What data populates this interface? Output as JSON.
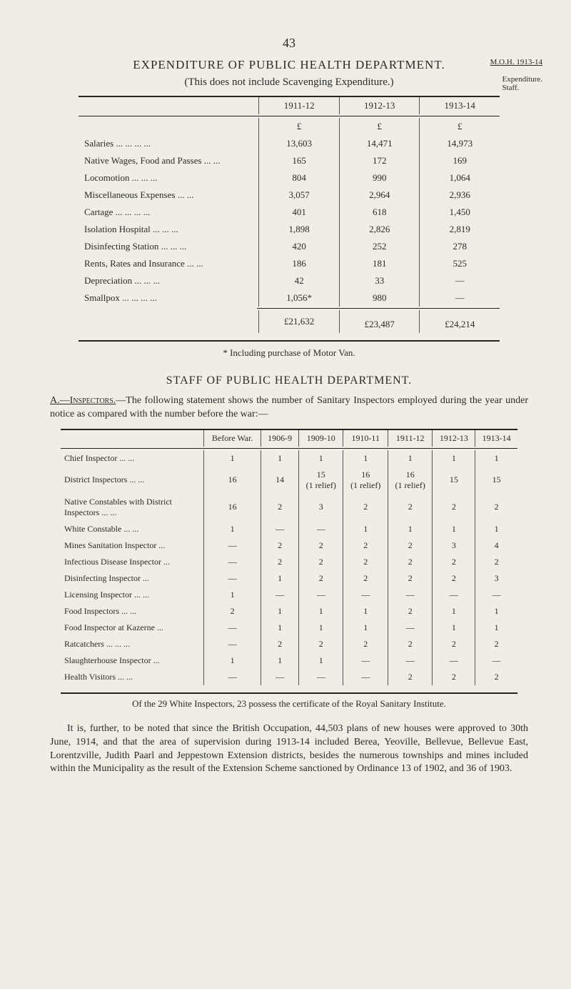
{
  "page_number": "43",
  "header": {
    "title": "EXPENDITURE OF PUBLIC HEALTH DEPARTMENT.",
    "subtitle": "(This does not include Scavenging Expenditure.)",
    "margin_ref": "M.O.H. 1913-14",
    "margin_note": "Expenditure.\nStaff."
  },
  "table1": {
    "col_headers": [
      "1911-12",
      "1912-13",
      "1913-14"
    ],
    "currency": "£",
    "rows": [
      {
        "label": "Salaries    ...            ...            ...            ...",
        "v": [
          "13,603",
          "14,471",
          "14,973"
        ]
      },
      {
        "label": "Native Wages, Food and Passes ...            ...",
        "v": [
          "165",
          "172",
          "169"
        ]
      },
      {
        "label": "Locomotion            ...            ...            ...",
        "v": [
          "804",
          "990",
          "1,064"
        ]
      },
      {
        "label": "Miscellaneous Expenses            ...            ...",
        "v": [
          "3,057",
          "2,964",
          "2,936"
        ]
      },
      {
        "label": "Cartage    ...            ...            ...            ...",
        "v": [
          "401",
          "618",
          "1,450"
        ]
      },
      {
        "label": "Isolation Hospital    ...            ...            ...",
        "v": [
          "1,898",
          "2,826",
          "2,819"
        ]
      },
      {
        "label": "Disinfecting Station ...            ...            ...",
        "v": [
          "420",
          "252",
          "278"
        ]
      },
      {
        "label": "Rents, Rates and Insurance        ...            ...",
        "v": [
          "186",
          "181",
          "525"
        ]
      },
      {
        "label": "Depreciation            ...            ...            ...",
        "v": [
          "42",
          "33",
          "—"
        ]
      },
      {
        "label": "Smallpox ...            ...            ...            ...",
        "v": [
          "1,056*",
          "980",
          "—"
        ]
      }
    ],
    "totals": [
      "£21,632",
      "£23,487",
      "£24,214"
    ],
    "footnote": "* Including purchase of Motor Van."
  },
  "section2": {
    "title": "STAFF OF PUBLIC HEALTH DEPARTMENT.",
    "intro_a": "A.—Inspectors.",
    "intro_text": "—The following statement shows the number of Sanitary Inspectors employed during the year under notice as compared with the number before the war:—"
  },
  "table2": {
    "col_headers": [
      "Before War.",
      "1906-9",
      "1909-10",
      "1910-11",
      "1911-12",
      "1912-13",
      "1913-14"
    ],
    "rows": [
      {
        "label": "Chief Inspector            ...        ...",
        "v": [
          "1",
          "1",
          "1",
          "1",
          "1",
          "1",
          "1"
        ]
      },
      {
        "label": "District Inspectors        ...        ...",
        "v": [
          "16",
          "14",
          "15\n(1 relief)",
          "16\n(1 relief)",
          "16\n(1 relief)",
          "15",
          "15"
        ]
      },
      {
        "label": "Native Constables with District\n    Inspectors            ...        ...",
        "v": [
          "16",
          "2",
          "3",
          "2",
          "2",
          "2",
          "2"
        ]
      },
      {
        "label": "White Constable            ...        ...",
        "v": [
          "1",
          "—",
          "—",
          "1",
          "1",
          "1",
          "1"
        ]
      },
      {
        "label": "Mines Sanitation Inspector    ...",
        "v": [
          "—",
          "2",
          "2",
          "2",
          "2",
          "3",
          "4"
        ]
      },
      {
        "label": "Infectious Disease Inspector  ...",
        "v": [
          "—",
          "2",
          "2",
          "2",
          "2",
          "2",
          "2"
        ]
      },
      {
        "label": "Disinfecting Inspector        ...",
        "v": [
          "—",
          "1",
          "2",
          "2",
          "2",
          "2",
          "3"
        ]
      },
      {
        "label": "Licensing Inspector  ...        ...",
        "v": [
          "1",
          "—",
          "—",
          "—",
          "—",
          "—",
          "—"
        ]
      },
      {
        "label": "Food Inspectors            ...        ...",
        "v": [
          "2",
          "1",
          "1",
          "1",
          "2",
          "1",
          "1"
        ]
      },
      {
        "label": "Food Inspector at Kazerne    ...",
        "v": [
          "—",
          "1",
          "1",
          "1",
          "—",
          "1",
          "1"
        ]
      },
      {
        "label": "Ratcatchers ...        ...        ...",
        "v": [
          "—",
          "2",
          "2",
          "2",
          "2",
          "2",
          "2"
        ]
      },
      {
        "label": "Slaughterhouse Inspector      ...",
        "v": [
          "1",
          "1",
          "1",
          "—",
          "—",
          "—",
          "—"
        ]
      },
      {
        "label": "Health Visitors            ...        ...",
        "v": [
          "—",
          "—",
          "—",
          "—",
          "2",
          "2",
          "2"
        ]
      }
    ],
    "footnote": "Of the 29 White Inspectors, 23 possess the certificate of the Royal Sanitary Institute."
  },
  "closing_para": "It is, further, to be noted that since the British Occupation, 44,503 plans of new houses were approved to 30th June, 1914, and that the area of super­vision during 1913-14 included Berea, Yeoville, Bellevue, Bellevue East, Lorentzville, Judith Paarl and Jeppestown Extension districts, besides the numerous townships and mines included within the Municipality as the result of the Extension Scheme sanctioned by Ordinance 13 of 1902, and 36 of 1903."
}
